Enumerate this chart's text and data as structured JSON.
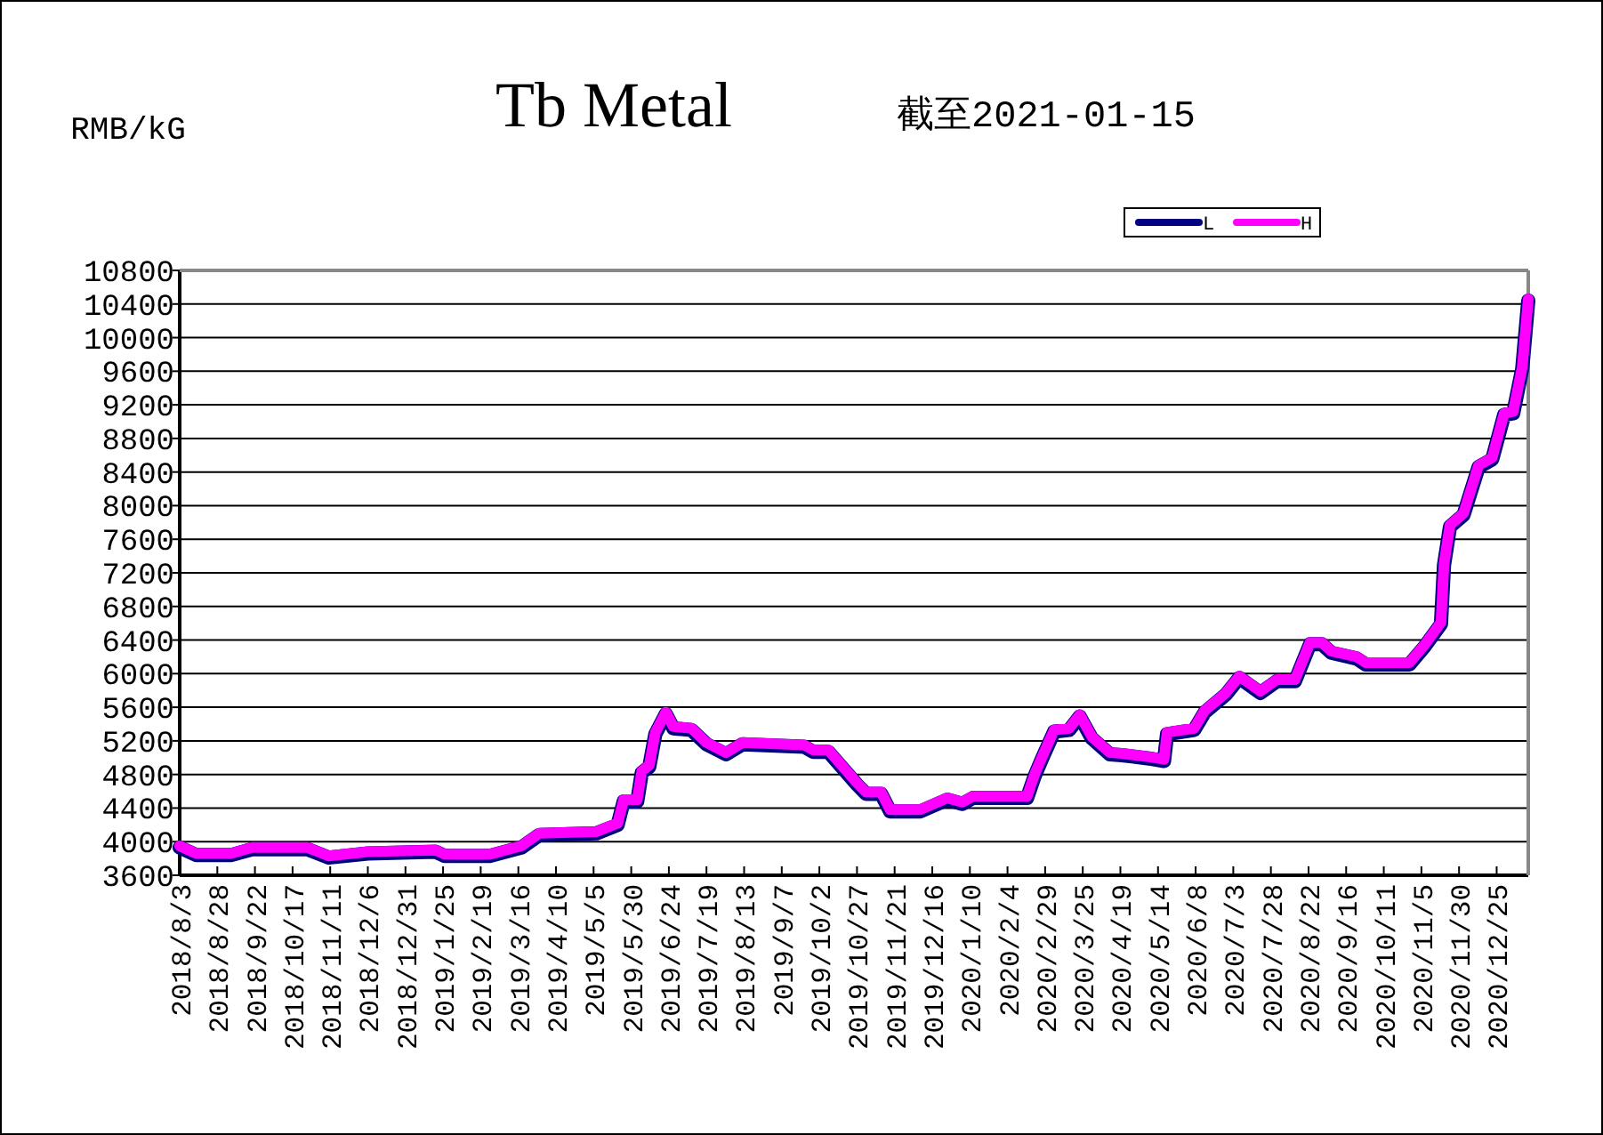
{
  "chart_data": {
    "type": "line",
    "title": "Tb Metal",
    "subtitle": "截至2021-01-15",
    "ylabel": "RMB/kG",
    "x": [
      "2018-08-03",
      "2018-08-14",
      "2018-09-06",
      "2018-09-20",
      "2018-10-27",
      "2018-11-10",
      "2018-12-06",
      "2019-01-20",
      "2019-01-26",
      "2019-02-25",
      "2019-03-18",
      "2019-03-30",
      "2019-05-07",
      "2019-05-21",
      "2019-05-25",
      "2019-06-03",
      "2019-06-06",
      "2019-06-11",
      "2019-06-15",
      "2019-06-22",
      "2019-06-27",
      "2019-07-09",
      "2019-07-19",
      "2019-08-01",
      "2019-08-12",
      "2019-09-22",
      "2019-09-28",
      "2019-10-08",
      "2019-10-27",
      "2019-11-02",
      "2019-11-12",
      "2019-11-18",
      "2019-12-08",
      "2019-12-26",
      "2020-01-05",
      "2020-01-12",
      "2020-02-17",
      "2020-02-22",
      "2020-02-27",
      "2020-03-06",
      "2020-03-16",
      "2020-03-23",
      "2020-03-31",
      "2020-04-12",
      "2020-04-20",
      "2020-05-08",
      "2020-05-18",
      "2020-05-20",
      "2020-06-07",
      "2020-06-14",
      "2020-06-28",
      "2020-07-07",
      "2020-07-21",
      "2020-08-01",
      "2020-08-13",
      "2020-08-23",
      "2020-08-31",
      "2020-09-06",
      "2020-09-23",
      "2020-09-29",
      "2020-10-28",
      "2020-11-07",
      "2020-11-18",
      "2020-11-20",
      "2020-11-24",
      "2020-12-03",
      "2020-12-13",
      "2020-12-22",
      "2020-12-30",
      "2021-01-05",
      "2021-01-11",
      "2021-01-15"
    ],
    "series": [
      {
        "name": "L",
        "color": "#000080",
        "values": [
          3930,
          3840,
          3840,
          3910,
          3910,
          3810,
          3860,
          3880,
          3830,
          3830,
          3930,
          4080,
          4100,
          4200,
          4480,
          4480,
          4820,
          4890,
          5280,
          5520,
          5350,
          5330,
          5160,
          5040,
          5160,
          5130,
          5070,
          5070,
          4680,
          4570,
          4570,
          4360,
          4360,
          4500,
          4450,
          4520,
          4520,
          4780,
          4990,
          5310,
          5330,
          5490,
          5230,
          5040,
          5030,
          4990,
          4960,
          5280,
          5330,
          5540,
          5750,
          5950,
          5770,
          5910,
          5910,
          6350,
          6350,
          6250,
          6180,
          6110,
          6110,
          6320,
          6590,
          7290,
          7750,
          7890,
          8460,
          8550,
          9080,
          9100,
          9630,
          10440
        ]
      },
      {
        "name": "H",
        "color": "#ff00ff",
        "values": [
          3950,
          3860,
          3860,
          3930,
          3930,
          3830,
          3880,
          3900,
          3850,
          3850,
          3950,
          4100,
          4120,
          4220,
          4500,
          4500,
          4840,
          4910,
          5300,
          5540,
          5370,
          5350,
          5180,
          5060,
          5180,
          5150,
          5090,
          5090,
          4700,
          4590,
          4590,
          4380,
          4380,
          4520,
          4470,
          4540,
          4540,
          4800,
          5010,
          5330,
          5350,
          5510,
          5250,
          5060,
          5050,
          5010,
          4980,
          5300,
          5350,
          5560,
          5770,
          5970,
          5790,
          5930,
          5930,
          6370,
          6370,
          6270,
          6200,
          6130,
          6130,
          6340,
          6610,
          7310,
          7770,
          7910,
          8480,
          8570,
          9100,
          9120,
          9650,
          10460
        ]
      }
    ],
    "xlim": [
      "2018-08-03",
      "2021-01-15"
    ],
    "xticks": [
      {
        "value": "2018-08-03",
        "label": "2018/8/3"
      },
      {
        "value": "2018-08-28",
        "label": "2018/8/28"
      },
      {
        "value": "2018-09-22",
        "label": "2018/9/22"
      },
      {
        "value": "2018-10-17",
        "label": "2018/10/17"
      },
      {
        "value": "2018-11-11",
        "label": "2018/11/11"
      },
      {
        "value": "2018-12-06",
        "label": "2018/12/6"
      },
      {
        "value": "2018-12-31",
        "label": "2018/12/31"
      },
      {
        "value": "2019-01-25",
        "label": "2019/1/25"
      },
      {
        "value": "2019-02-19",
        "label": "2019/2/19"
      },
      {
        "value": "2019-03-16",
        "label": "2019/3/16"
      },
      {
        "value": "2019-04-10",
        "label": "2019/4/10"
      },
      {
        "value": "2019-05-05",
        "label": "2019/5/5"
      },
      {
        "value": "2019-05-30",
        "label": "2019/5/30"
      },
      {
        "value": "2019-06-24",
        "label": "2019/6/24"
      },
      {
        "value": "2019-07-19",
        "label": "2019/7/19"
      },
      {
        "value": "2019-08-13",
        "label": "2019/8/13"
      },
      {
        "value": "2019-09-07",
        "label": "2019/9/7"
      },
      {
        "value": "2019-10-02",
        "label": "2019/10/2"
      },
      {
        "value": "2019-10-27",
        "label": "2019/10/27"
      },
      {
        "value": "2019-11-21",
        "label": "2019/11/21"
      },
      {
        "value": "2019-12-16",
        "label": "2019/12/16"
      },
      {
        "value": "2020-01-10",
        "label": "2020/1/10"
      },
      {
        "value": "2020-02-04",
        "label": "2020/2/4"
      },
      {
        "value": "2020-02-29",
        "label": "2020/2/29"
      },
      {
        "value": "2020-03-25",
        "label": "2020/3/25"
      },
      {
        "value": "2020-04-19",
        "label": "2020/4/19"
      },
      {
        "value": "2020-05-14",
        "label": "2020/5/14"
      },
      {
        "value": "2020-06-08",
        "label": "2020/6/8"
      },
      {
        "value": "2020-07-03",
        "label": "2020/7/3"
      },
      {
        "value": "2020-07-28",
        "label": "2020/7/28"
      },
      {
        "value": "2020-08-22",
        "label": "2020/8/22"
      },
      {
        "value": "2020-09-16",
        "label": "2020/9/16"
      },
      {
        "value": "2020-10-11",
        "label": "2020/10/11"
      },
      {
        "value": "2020-11-05",
        "label": "2020/11/5"
      },
      {
        "value": "2020-11-30",
        "label": "2020/11/30"
      },
      {
        "value": "2020-12-25",
        "label": "2020/12/25"
      }
    ],
    "ylim": [
      3600,
      10800
    ],
    "yticks": [
      3600,
      4000,
      4400,
      4800,
      5200,
      5600,
      6000,
      6400,
      6800,
      7200,
      7600,
      8000,
      8400,
      8800,
      9200,
      9600,
      10000,
      10400,
      10800
    ],
    "grid": "y",
    "legend": "top right",
    "marker": "none",
    "line_style": "solid"
  }
}
